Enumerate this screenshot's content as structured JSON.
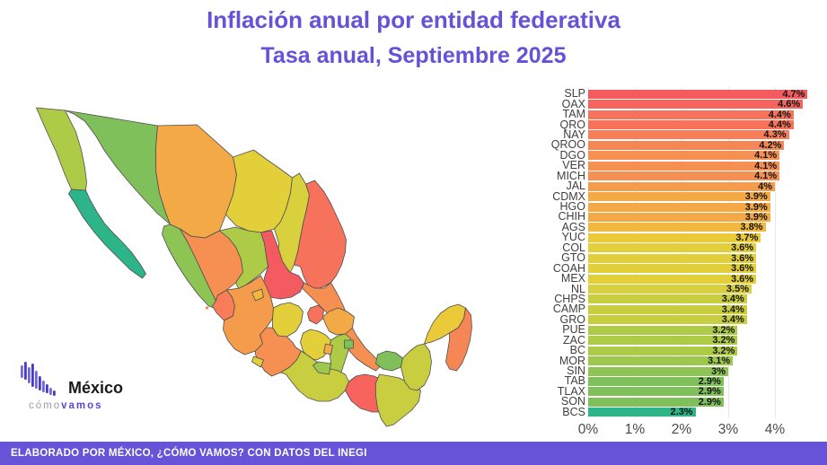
{
  "title": {
    "line1": "Inflación anual por entidad federativa",
    "line2": "Tasa anual, Septiembre 2025"
  },
  "footer": {
    "text": "ELABORADO POR MÉXICO, ¿CÓMO VAMOS? CON DATOS DEL INEGI"
  },
  "logo": {
    "brand": "México",
    "sub1": "cómo",
    "sub2": "vamos"
  },
  "colors": {
    "accent_purple": "#6453d8",
    "footer_bg": "#6553d8",
    "gridline": "#e8e8e8",
    "map_stroke": "#4f4f4f",
    "state_label": "#404040",
    "value_label": "#141414"
  },
  "value_colors": {
    "2.3": "#2db489",
    "2.9": "#80c05a",
    "3": "#8dc453",
    "3.1": "#9dc84d",
    "3.2": "#adcb47",
    "3.4": "#c8ce40",
    "3.5": "#d8d03c",
    "3.6": "#e2cf3a",
    "3.7": "#ebca39",
    "3.8": "#f0b83e",
    "3.9": "#f3a945",
    "4": "#f49c4b",
    "4.1": "#f68f52",
    "4.2": "#f78656",
    "4.3": "#f87d58",
    "4.4": "#f7725a",
    "4.6": "#f6645d",
    "4.7": "#f45b60"
  },
  "chart_data": {
    "type": "bar",
    "orientation": "horizontal",
    "title": "Inflación anual por entidad federativa",
    "subtitle": "Tasa anual, Septiembre 2025",
    "xlabel": "",
    "ylabel": "",
    "unit": "%",
    "x_ticks": [
      "0%",
      "1%",
      "2%",
      "3%",
      "4%"
    ],
    "xlim": [
      0,
      5
    ],
    "grid": true,
    "states": [
      {
        "code": "SLP",
        "value": 4.7,
        "label": "4.7%"
      },
      {
        "code": "OAX",
        "value": 4.6,
        "label": "4.6%"
      },
      {
        "code": "TAM",
        "value": 4.4,
        "label": "4.4%"
      },
      {
        "code": "QRO",
        "value": 4.4,
        "label": "4.4%"
      },
      {
        "code": "NAY",
        "value": 4.3,
        "label": "4.3%"
      },
      {
        "code": "QROO",
        "value": 4.2,
        "label": "4.2%"
      },
      {
        "code": "DGO",
        "value": 4.1,
        "label": "4.1%"
      },
      {
        "code": "VER",
        "value": 4.1,
        "label": "4.1%"
      },
      {
        "code": "MICH",
        "value": 4.1,
        "label": "4.1%"
      },
      {
        "code": "JAL",
        "value": 4.0,
        "label": "4%"
      },
      {
        "code": "CDMX",
        "value": 3.9,
        "label": "3.9%"
      },
      {
        "code": "HGO",
        "value": 3.9,
        "label": "3.9%"
      },
      {
        "code": "CHIH",
        "value": 3.9,
        "label": "3.9%"
      },
      {
        "code": "AGS",
        "value": 3.8,
        "label": "3.8%"
      },
      {
        "code": "YUC",
        "value": 3.7,
        "label": "3.7%"
      },
      {
        "code": "COL",
        "value": 3.6,
        "label": "3.6%"
      },
      {
        "code": "GTO",
        "value": 3.6,
        "label": "3.6%"
      },
      {
        "code": "COAH",
        "value": 3.6,
        "label": "3.6%"
      },
      {
        "code": "MEX",
        "value": 3.6,
        "label": "3.6%"
      },
      {
        "code": "NL",
        "value": 3.5,
        "label": "3.5%"
      },
      {
        "code": "CHPS",
        "value": 3.4,
        "label": "3.4%"
      },
      {
        "code": "CAMP",
        "value": 3.4,
        "label": "3.4%"
      },
      {
        "code": "GRO",
        "value": 3.4,
        "label": "3.4%"
      },
      {
        "code": "PUE",
        "value": 3.2,
        "label": "3.2%"
      },
      {
        "code": "ZAC",
        "value": 3.2,
        "label": "3.2%"
      },
      {
        "code": "BC",
        "value": 3.2,
        "label": "3.2%"
      },
      {
        "code": "MOR",
        "value": 3.1,
        "label": "3.1%"
      },
      {
        "code": "SIN",
        "value": 3.0,
        "label": "3%"
      },
      {
        "code": "TAB",
        "value": 2.9,
        "label": "2.9%"
      },
      {
        "code": "TLAX",
        "value": 2.9,
        "label": "2.9%"
      },
      {
        "code": "SON",
        "value": 2.9,
        "label": "2.9%"
      },
      {
        "code": "BCS",
        "value": 2.3,
        "label": "2.3%"
      }
    ]
  }
}
